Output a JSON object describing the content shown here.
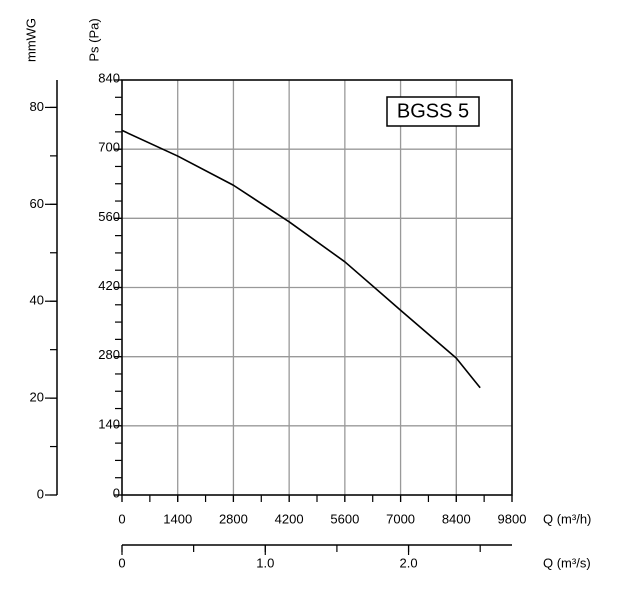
{
  "chart_data": {
    "type": "line",
    "annotation": "BGSS 5",
    "ylabel": "Ps (Pa)",
    "y2label": "mmWG",
    "xlabel": "Q (m³/h)",
    "x2label": "Q (m³/s)",
    "x": [
      0,
      1400,
      2800,
      4200,
      5600,
      7000,
      8400,
      9000
    ],
    "series": [
      {
        "color": "#000000",
        "values": [
          738,
          686,
          627,
          553,
          472,
          374,
          277,
          217
        ]
      }
    ],
    "xlim": [
      0,
      9800
    ],
    "xticks": [
      0,
      1400,
      2800,
      4200,
      5600,
      7000,
      8400,
      9800
    ],
    "xminor": 700,
    "ylim": [
      0,
      840
    ],
    "yticks": [
      0,
      140,
      280,
      420,
      560,
      700,
      840
    ],
    "yminor": 35,
    "y2lim": [
      0,
      85.66
    ],
    "y2ticks": [
      0,
      20,
      40,
      60,
      80
    ],
    "y2minor": 10,
    "x2lim": [
      0,
      2.722
    ],
    "x2ticks": [
      0,
      {
        "value": 1,
        "label": "1.0"
      },
      {
        "value": 2,
        "label": "2.0"
      }
    ],
    "x2minor": 0.5,
    "grid": true
  }
}
